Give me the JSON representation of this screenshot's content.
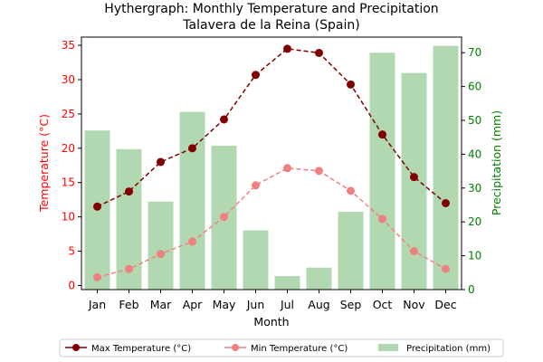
{
  "chart_data": {
    "type": "bar+line",
    "title": "Hythergraph: Monthly Temperature and Precipitation",
    "subtitle": "Talavera de la Reina (Spain)",
    "xlabel": "Month",
    "ylabel_left": "Temperature (°C)",
    "ylabel_right": "Precipitation (mm)",
    "categories": [
      "Jan",
      "Feb",
      "Mar",
      "Apr",
      "May",
      "Jun",
      "Jul",
      "Aug",
      "Sep",
      "Oct",
      "Nov",
      "Dec"
    ],
    "ylim_left": [
      -0.6,
      36.2
    ],
    "ylim_right": [
      0,
      74.6
    ],
    "yticks_left": [
      0,
      5,
      10,
      15,
      20,
      25,
      30,
      35
    ],
    "yticks_right": [
      0,
      10,
      20,
      30,
      40,
      50,
      60,
      70
    ],
    "grid": false,
    "legend_position": "bottom",
    "series": [
      {
        "name": "Max Temperature (°C)",
        "type": "line",
        "axis": "left",
        "color": "#800000",
        "values": [
          11.5,
          13.7,
          18.0,
          20.0,
          24.2,
          30.7,
          34.5,
          33.9,
          29.3,
          22.0,
          15.8,
          12.0
        ]
      },
      {
        "name": "Min Temperature (°C)",
        "type": "line",
        "axis": "left",
        "color": "#f08080",
        "values": [
          1.2,
          2.4,
          4.6,
          6.4,
          10.0,
          14.6,
          17.1,
          16.7,
          13.8,
          9.7,
          5.0,
          2.4
        ]
      },
      {
        "name": "Precipitation (mm)",
        "type": "bar",
        "axis": "right",
        "color": "#b2d8b2",
        "values": [
          47,
          41.5,
          26,
          52.5,
          42.5,
          17.5,
          4,
          6.5,
          23,
          70,
          64,
          72
        ]
      }
    ],
    "colors": {
      "left_axis": "#ff0000",
      "right_axis": "#008000"
    }
  }
}
